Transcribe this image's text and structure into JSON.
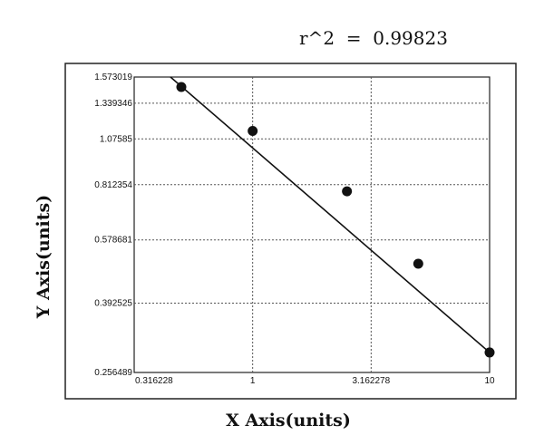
{
  "chart_data": {
    "type": "scatter",
    "annotation": "r^2  =  0.99823",
    "xlabel": "X Axis(units)",
    "ylabel": "Y Axis(units)",
    "x_scale": "log",
    "y_scale": "log",
    "xlim": [
      0.316228,
      10
    ],
    "ylim": [
      0.256489,
      1.573019
    ],
    "x_ticks": [
      0.316228,
      1,
      3.162278,
      10
    ],
    "x_tick_labels": [
      "0.316228",
      "1",
      "3.162278",
      "10"
    ],
    "y_ticks": [
      0.256489,
      0.392525,
      0.578681,
      0.812354,
      1.07585,
      1.339346,
      1.573019
    ],
    "y_tick_labels": [
      "0.256489",
      "0.392525",
      "0.578681",
      "0.812354",
      "1.07585",
      "1.339346",
      "1.573019"
    ],
    "grid": true,
    "series": [
      {
        "points": [
          {
            "x": 0.5,
            "y": 1.48
          },
          {
            "x": 1.0,
            "y": 1.13
          },
          {
            "x": 2.5,
            "y": 0.78
          },
          {
            "x": 5.0,
            "y": 0.5
          },
          {
            "x": 10.0,
            "y": 0.29
          }
        ]
      }
    ],
    "fit_line": [
      {
        "x": 0.45,
        "y": 1.573019
      },
      {
        "x": 10.0,
        "y": 0.29
      }
    ]
  }
}
